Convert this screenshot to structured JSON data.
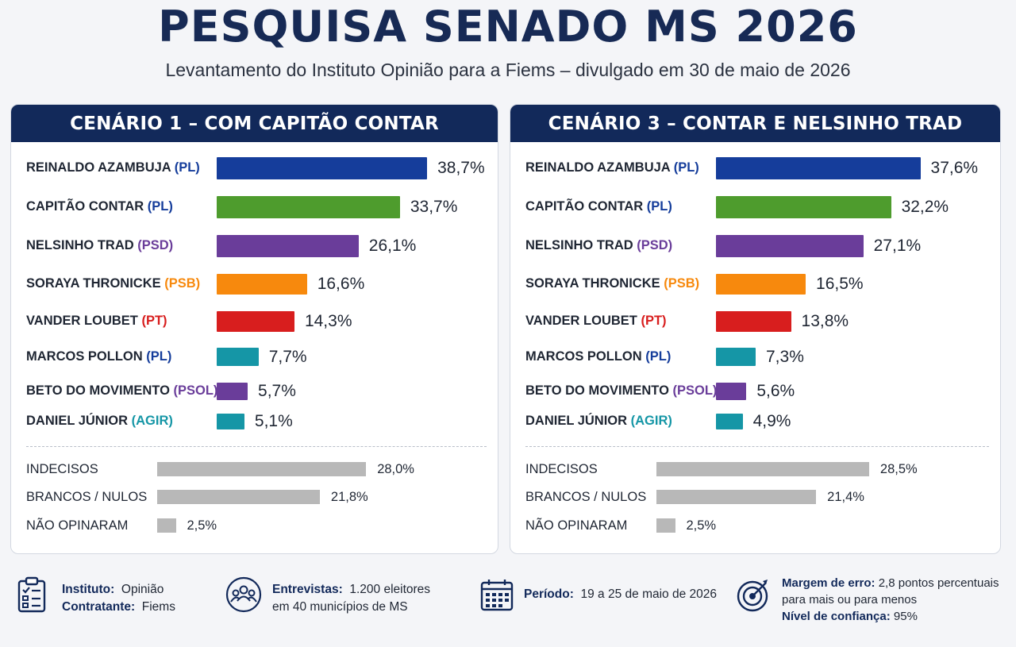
{
  "title": "PESQUISA SENADO MS 2026",
  "subtitle": "Levantamento do Instituto Opinião para a Fiems – divulgado em 30 de maio de 2026",
  "colors": {
    "navy": "#12295a",
    "PL_blue": "#153d9b",
    "PL_green": "#4e9c2d",
    "PSD_purple": "#6a3d9a",
    "PSB_orange": "#f7890d",
    "PT_red": "#d81e1e",
    "teal": "#1596a6",
    "gray": "#b8b8b8"
  },
  "chart_data": [
    {
      "type": "bar",
      "title": "CENÁRIO 1 – COM CAPITÃO CONTAR",
      "candidates": [
        {
          "name": "REINALDO AZAMBUJA",
          "party": "(PL)",
          "value": 38.7,
          "label": "38,7%",
          "color": "#153d9b",
          "party_color": "#153d9b"
        },
        {
          "name": "CAPITÃO CONTAR",
          "party": "(PL)",
          "value": 33.7,
          "label": "33,7%",
          "color": "#4e9c2d",
          "party_color": "#153d9b"
        },
        {
          "name": "NELSINHO TRAD",
          "party": "(PSD)",
          "value": 26.1,
          "label": "26,1%",
          "color": "#6a3d9a",
          "party_color": "#6a3d9a"
        },
        {
          "name": "SORAYA THRONICKE",
          "party": "(PSB)",
          "value": 16.6,
          "label": "16,6%",
          "color": "#f7890d",
          "party_color": "#f7890d"
        },
        {
          "name": "VANDER LOUBET",
          "party": "(PT)",
          "value": 14.3,
          "label": "14,3%",
          "color": "#d81e1e",
          "party_color": "#d81e1e"
        },
        {
          "name": "MARCOS POLLON",
          "party": "(PL)",
          "value": 7.7,
          "label": "7,7%",
          "color": "#1596a6",
          "party_color": "#153d9b"
        },
        {
          "name": "BETO DO MOVIMENTO",
          "party": "(PSOL)",
          "value": 5.7,
          "label": "5,7%",
          "color": "#6a3d9a",
          "party_color": "#6a3d9a"
        },
        {
          "name": "DANIEL JÚNIOR",
          "party": "(AGIR)",
          "value": 5.1,
          "label": "5,1%",
          "color": "#1596a6",
          "party_color": "#1596a6"
        }
      ],
      "others": [
        {
          "name": "INDECISOS",
          "value": 28.0,
          "label": "28,0%"
        },
        {
          "name": "BRANCOS / NULOS",
          "value": 21.8,
          "label": "21,8%"
        },
        {
          "name": "NÃO OPINARAM",
          "value": 2.5,
          "label": "2,5%"
        }
      ]
    },
    {
      "type": "bar",
      "title": "CENÁRIO 3 – CONTAR E NELSINHO TRAD",
      "candidates": [
        {
          "name": "REINALDO AZAMBUJA",
          "party": "(PL)",
          "value": 37.6,
          "label": "37,6%",
          "color": "#153d9b",
          "party_color": "#153d9b"
        },
        {
          "name": "CAPITÃO CONTAR",
          "party": "(PL)",
          "value": 32.2,
          "label": "32,2%",
          "color": "#4e9c2d",
          "party_color": "#153d9b"
        },
        {
          "name": "NELSINHO TRAD",
          "party": "(PSD)",
          "value": 27.1,
          "label": "27,1%",
          "color": "#6a3d9a",
          "party_color": "#6a3d9a"
        },
        {
          "name": "SORAYA THRONICKE",
          "party": "(PSB)",
          "value": 16.5,
          "label": "16,5%",
          "color": "#f7890d",
          "party_color": "#f7890d"
        },
        {
          "name": "VANDER LOUBET",
          "party": "(PT)",
          "value": 13.8,
          "label": "13,8%",
          "color": "#d81e1e",
          "party_color": "#d81e1e"
        },
        {
          "name": "MARCOS POLLON",
          "party": "(PL)",
          "value": 7.3,
          "label": "7,3%",
          "color": "#1596a6",
          "party_color": "#153d9b"
        },
        {
          "name": "BETO DO MOVIMENTO",
          "party": "(PSOL)",
          "value": 5.6,
          "label": "5,6%",
          "color": "#6a3d9a",
          "party_color": "#6a3d9a"
        },
        {
          "name": "DANIEL JÚNIOR",
          "party": "(AGIR)",
          "value": 4.9,
          "label": "4,9%",
          "color": "#1596a6",
          "party_color": "#1596a6"
        }
      ],
      "others": [
        {
          "name": "INDECISOS",
          "value": 28.5,
          "label": "28,5%"
        },
        {
          "name": "BRANCOS / NULOS",
          "value": 21.4,
          "label": "21,4%"
        },
        {
          "name": "NÃO OPINARAM",
          "value": 2.5,
          "label": "2,5%"
        }
      ]
    }
  ],
  "footer": {
    "instituto_label": "Instituto:",
    "instituto_value": "Opinião",
    "contratante_label": "Contratante:",
    "contratante_value": "Fiems",
    "entrevistas_label": "Entrevistas:",
    "entrevistas_value": "1.200 eleitores",
    "entrevistas_line2": "em 40 municípios de MS",
    "periodo_label": "Período:",
    "periodo_value": "19 a 25 de maio de 2026",
    "margem_label": "Margem de erro:",
    "margem_value": "2,8 pontos percentuais",
    "margem_line2": "para mais ou para menos",
    "confianca_label": "Nível de confiança:",
    "confianca_value": "95%",
    "icons": [
      "clipboard-icon",
      "people-icon",
      "calendar-icon",
      "target-icon"
    ]
  }
}
